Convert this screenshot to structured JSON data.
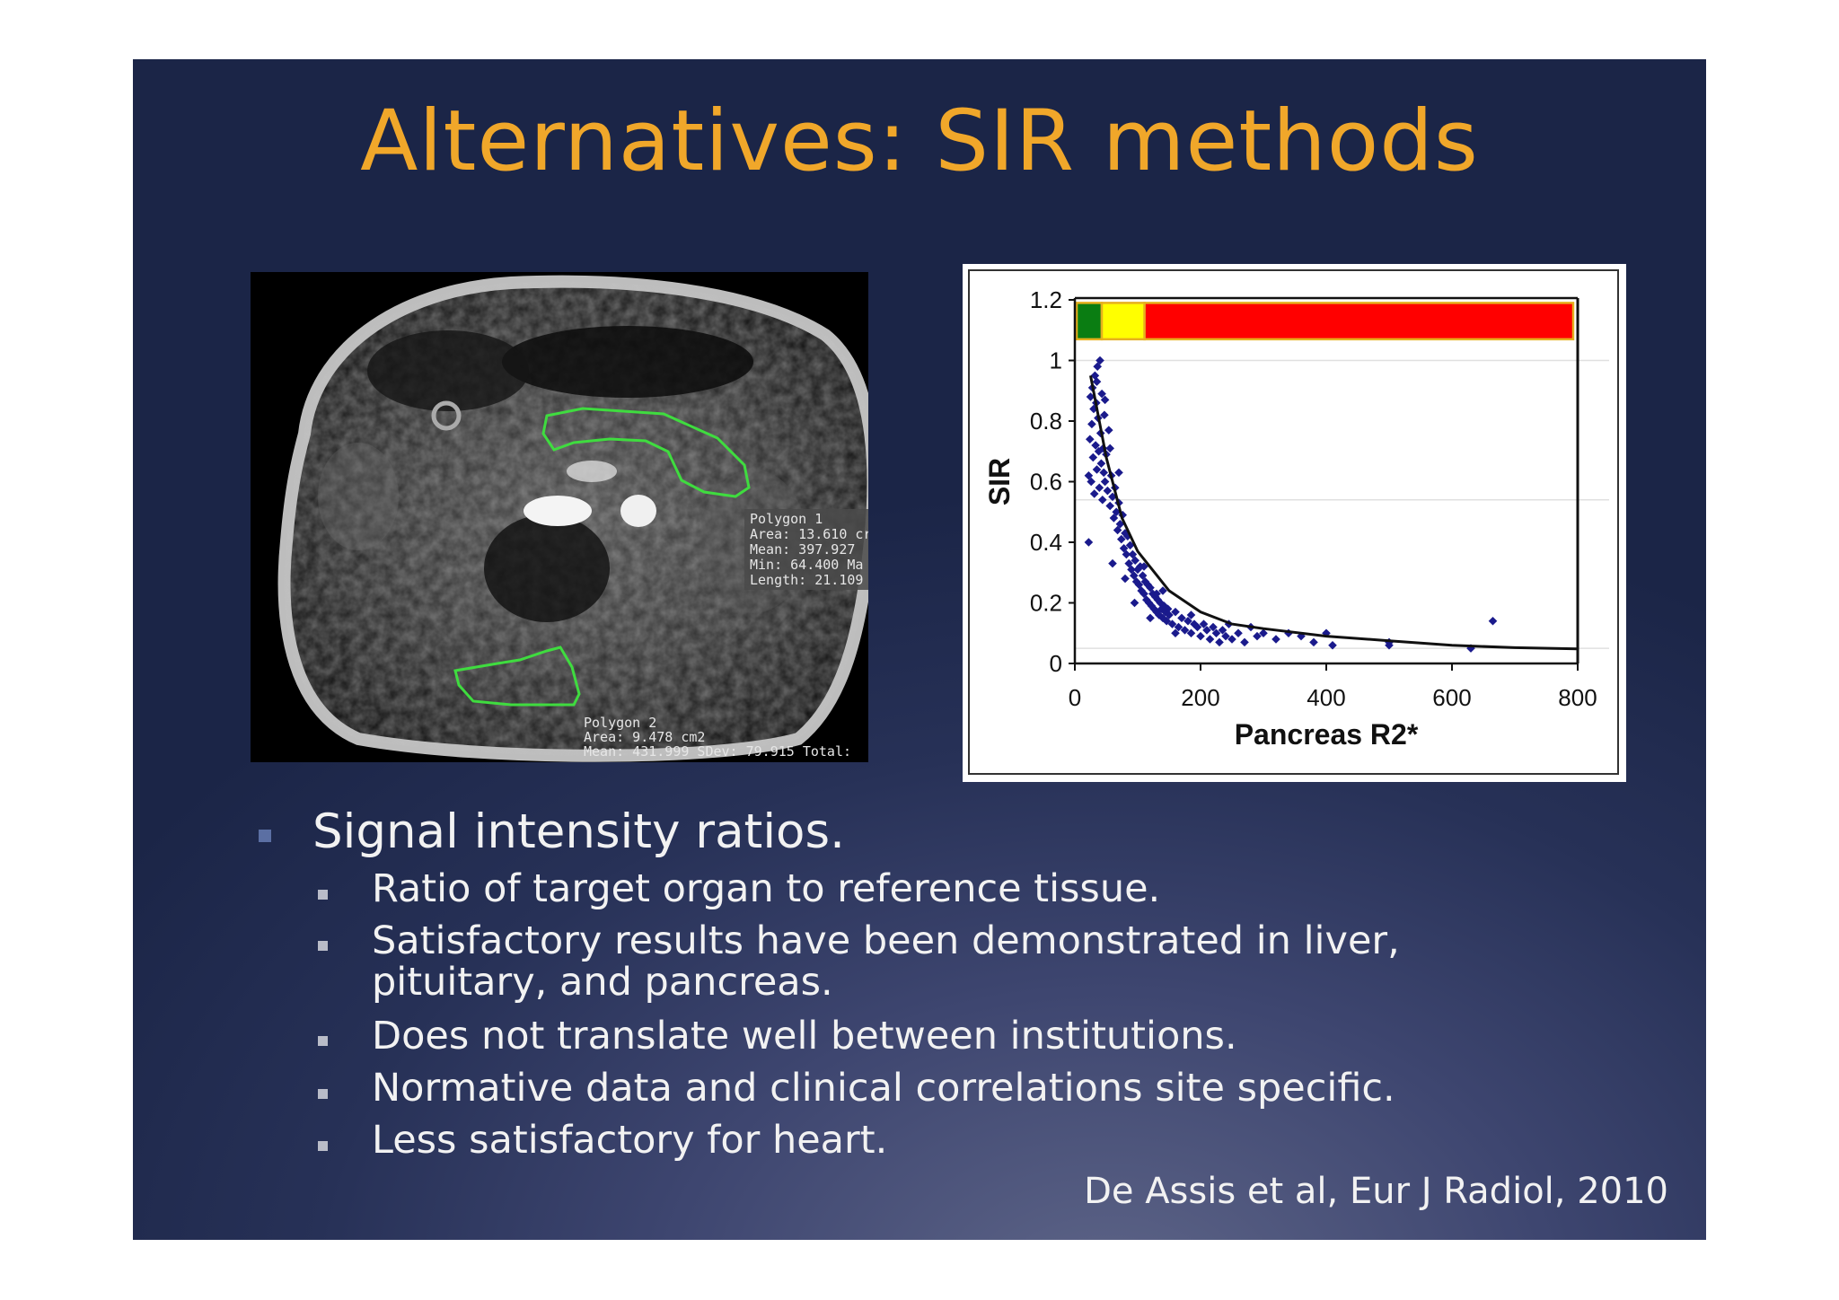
{
  "slide": {
    "title": "Alternatives: SIR methods",
    "citation": "De Assis et al, Eur J Radiol, 2010"
  },
  "bullets": {
    "main": "Signal intensity ratios.",
    "sub": [
      "Ratio of target organ to reference tissue.",
      "Satisfactory results have been demonstrated in  liver,",
      "pituitary, and pancreas.",
      "Does not translate well between institutions.",
      "Normative data and clinical correlations site specific.",
      "Less satisfactory for heart."
    ]
  },
  "mri": {
    "polygon1": {
      "name": "Polygon 1",
      "area": "Area: 13.610 cr",
      "mean": "Mean: 397.927",
      "min": "Min: 64.400 Ma",
      "length": "Length: 21.109"
    },
    "polygon2": {
      "name": "Polygon 2",
      "area": "Area: 9.478 cm2",
      "mean": "Mean: 431.999 SDev: 79.915 Total:"
    }
  },
  "chart_data": {
    "type": "scatter",
    "title": "",
    "xlabel": "Pancreas R2*",
    "ylabel": "SIR",
    "xlim": [
      0,
      800
    ],
    "ylim": [
      0,
      1.2
    ],
    "xticks": [
      "0",
      "200",
      "400",
      "600",
      "800"
    ],
    "yticks": [
      "0",
      "0.2",
      "0.4",
      "0.6",
      "0.8",
      "1",
      "1.2"
    ],
    "gridlines_y": [
      0.05,
      0.54,
      1.0
    ],
    "color_bar": [
      {
        "from": 0,
        "to": 40,
        "color": "#0a7d12"
      },
      {
        "from": 40,
        "to": 108,
        "color": "#ffff00"
      },
      {
        "from": 108,
        "to": 790,
        "color": "#ff0000"
      }
    ],
    "marker_color": "#1a1a8c",
    "fit_curve": [
      [
        25,
        0.95
      ],
      [
        50,
        0.68
      ],
      [
        75,
        0.48
      ],
      [
        100,
        0.37
      ],
      [
        150,
        0.24
      ],
      [
        200,
        0.17
      ],
      [
        250,
        0.13
      ],
      [
        300,
        0.115
      ],
      [
        400,
        0.09
      ],
      [
        500,
        0.075
      ],
      [
        600,
        0.06
      ],
      [
        700,
        0.052
      ],
      [
        800,
        0.048
      ]
    ],
    "points": [
      [
        22,
        0.62
      ],
      [
        24,
        0.74
      ],
      [
        25,
        0.88
      ],
      [
        26,
        0.6
      ],
      [
        27,
        0.79
      ],
      [
        28,
        0.91
      ],
      [
        29,
        0.68
      ],
      [
        30,
        0.84
      ],
      [
        31,
        0.56
      ],
      [
        32,
        0.95
      ],
      [
        33,
        0.72
      ],
      [
        34,
        0.86
      ],
      [
        35,
        0.64
      ],
      [
        36,
        0.98
      ],
      [
        37,
        0.81
      ],
      [
        38,
        0.7
      ],
      [
        39,
        0.58
      ],
      [
        40,
        1.0
      ],
      [
        41,
        0.76
      ],
      [
        42,
        0.66
      ],
      [
        43,
        0.89
      ],
      [
        44,
        0.54
      ],
      [
        45,
        0.71
      ],
      [
        46,
        0.63
      ],
      [
        47,
        0.82
      ],
      [
        48,
        0.6
      ],
      [
        50,
        0.69
      ],
      [
        52,
        0.57
      ],
      [
        54,
        0.77
      ],
      [
        56,
        0.52
      ],
      [
        58,
        0.62
      ],
      [
        60,
        0.55
      ],
      [
        62,
        0.48
      ],
      [
        64,
        0.58
      ],
      [
        66,
        0.5
      ],
      [
        68,
        0.44
      ],
      [
        70,
        0.53
      ],
      [
        72,
        0.46
      ],
      [
        74,
        0.41
      ],
      [
        76,
        0.49
      ],
      [
        78,
        0.38
      ],
      [
        80,
        0.43
      ],
      [
        82,
        0.36
      ],
      [
        84,
        0.42
      ],
      [
        86,
        0.33
      ],
      [
        88,
        0.39
      ],
      [
        90,
        0.31
      ],
      [
        92,
        0.36
      ],
      [
        94,
        0.29
      ],
      [
        96,
        0.34
      ],
      [
        98,
        0.27
      ],
      [
        100,
        0.31
      ],
      [
        102,
        0.26
      ],
      [
        104,
        0.32
      ],
      [
        106,
        0.24
      ],
      [
        108,
        0.29
      ],
      [
        110,
        0.23
      ],
      [
        112,
        0.27
      ],
      [
        114,
        0.21
      ],
      [
        116,
        0.26
      ],
      [
        118,
        0.2
      ],
      [
        120,
        0.25
      ],
      [
        122,
        0.19
      ],
      [
        124,
        0.23
      ],
      [
        126,
        0.18
      ],
      [
        128,
        0.22
      ],
      [
        130,
        0.17
      ],
      [
        132,
        0.21
      ],
      [
        134,
        0.16
      ],
      [
        136,
        0.2
      ],
      [
        138,
        0.18
      ],
      [
        140,
        0.15
      ],
      [
        142,
        0.19
      ],
      [
        144,
        0.17
      ],
      [
        146,
        0.14
      ],
      [
        148,
        0.18
      ],
      [
        150,
        0.16
      ],
      [
        155,
        0.13
      ],
      [
        160,
        0.17
      ],
      [
        165,
        0.12
      ],
      [
        170,
        0.15
      ],
      [
        175,
        0.11
      ],
      [
        180,
        0.14
      ],
      [
        185,
        0.1
      ],
      [
        190,
        0.13
      ],
      [
        195,
        0.12
      ],
      [
        200,
        0.09
      ],
      [
        205,
        0.13
      ],
      [
        210,
        0.11
      ],
      [
        215,
        0.08
      ],
      [
        220,
        0.12
      ],
      [
        225,
        0.1
      ],
      [
        230,
        0.07
      ],
      [
        235,
        0.11
      ],
      [
        240,
        0.09
      ],
      [
        245,
        0.13
      ],
      [
        250,
        0.08
      ],
      [
        260,
        0.1
      ],
      [
        270,
        0.07
      ],
      [
        280,
        0.12
      ],
      [
        290,
        0.09
      ],
      [
        300,
        0.1
      ],
      [
        320,
        0.08
      ],
      [
        340,
        0.1
      ],
      [
        360,
        0.09
      ],
      [
        380,
        0.07
      ],
      [
        400,
        0.1
      ],
      [
        410,
        0.06
      ],
      [
        500,
        0.07
      ],
      [
        500,
        0.06
      ],
      [
        630,
        0.05
      ],
      [
        665,
        0.14
      ],
      [
        22,
        0.4
      ],
      [
        60,
        0.33
      ],
      [
        95,
        0.2
      ],
      [
        130,
        0.23
      ],
      [
        160,
        0.1
      ],
      [
        185,
        0.16
      ],
      [
        110,
        0.32
      ],
      [
        80,
        0.28
      ],
      [
        120,
        0.15
      ],
      [
        140,
        0.24
      ],
      [
        70,
        0.63
      ],
      [
        56,
        0.71
      ],
      [
        48,
        0.87
      ],
      [
        35,
        0.93
      ]
    ]
  }
}
